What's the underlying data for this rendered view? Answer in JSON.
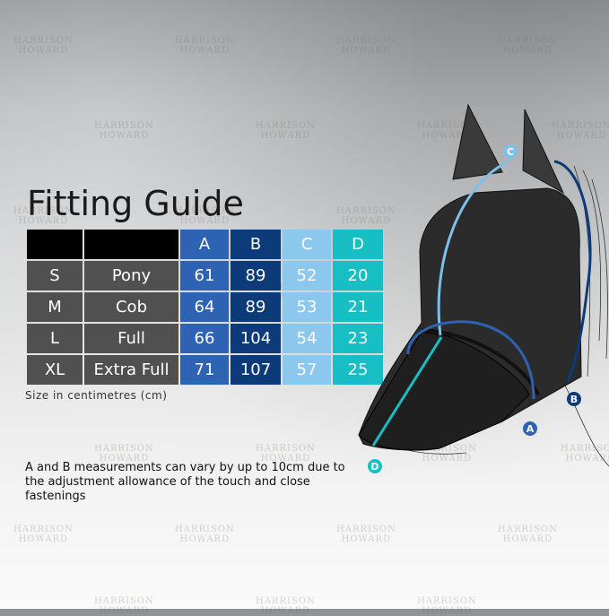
{
  "title": "Fitting Guide",
  "table": {
    "headers": [
      "",
      "",
      "A",
      "B",
      "C",
      "D"
    ],
    "rows": [
      {
        "size": "S",
        "name": "Pony",
        "a": "61",
        "b": "89",
        "c": "52",
        "d": "20"
      },
      {
        "size": "M",
        "name": "Cob",
        "a": "64",
        "b": "89",
        "c": "53",
        "d": "21"
      },
      {
        "size": "L",
        "name": "Full",
        "a": "66",
        "b": "104",
        "c": "54",
        "d": "23"
      },
      {
        "size": "XL",
        "name": "Extra Full",
        "a": "71",
        "b": "107",
        "c": "57",
        "d": "25"
      }
    ],
    "colors": {
      "A": "#2e63b4",
      "B": "#0d3a78",
      "C": "#8cc8ee",
      "D": "#17bfc4"
    }
  },
  "caption": "Size in centimetres (cm)",
  "note": "A and B measurements can vary by up to 10cm due to the adjustment allowance of the touch and close fastenings",
  "diagram_labels": {
    "a": "A",
    "b": "B",
    "c": "C",
    "d": "D"
  },
  "watermark": "HARRISON HOWARD"
}
